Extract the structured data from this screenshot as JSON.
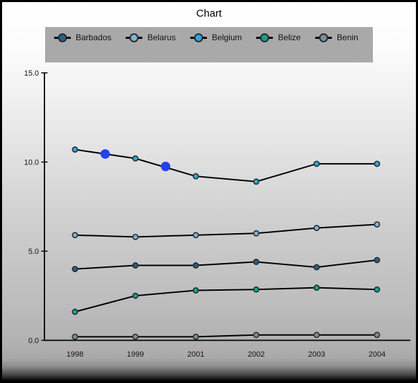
{
  "title": "Chart",
  "colors": {
    "background_top": "#ffffff",
    "background_bottom": "#000000",
    "legend_background": "#a9a9a9",
    "series_line": "#000000",
    "marker_stroke": "#2b2b2b",
    "axis": "#000000",
    "text": "#111111",
    "highlight": "#2441ef"
  },
  "chart_data": {
    "type": "line",
    "title": "Chart",
    "categories": [
      "1998",
      "1999",
      "2001",
      "2002",
      "2003",
      "2004"
    ],
    "series": [
      {
        "name": "Barbados",
        "color": "#21618c",
        "values": [
          4.0,
          4.2,
          4.2,
          4.4,
          4.1,
          4.5
        ]
      },
      {
        "name": "Belarus",
        "color": "#7fb3d5",
        "values": [
          5.9,
          5.8,
          5.9,
          6.0,
          6.3,
          6.5
        ]
      },
      {
        "name": "Belgium",
        "color": "#29abe2",
        "values": [
          10.7,
          10.2,
          9.2,
          8.9,
          9.9,
          9.9
        ]
      },
      {
        "name": "Belize",
        "color": "#0fa390",
        "values": [
          1.6,
          2.5,
          2.8,
          2.85,
          2.95,
          2.85
        ]
      },
      {
        "name": "Benin",
        "color": "#78909c",
        "values": [
          0.2,
          0.2,
          0.2,
          0.3,
          0.3,
          0.3
        ]
      }
    ],
    "highlighted_points": [
      {
        "series": "Belgium",
        "between_categories": [
          "1998",
          "1999"
        ],
        "value": 10.45,
        "color": "#2441ef"
      },
      {
        "series": "Belgium",
        "between_categories": [
          "1999",
          "2001"
        ],
        "value": 9.75,
        "color": "#2441ef"
      }
    ],
    "y_axis": {
      "min": 0,
      "max": 15,
      "tick_labels": [
        "15.0",
        "10.0",
        "5.0",
        "0.0"
      ],
      "tick_values": [
        15,
        10,
        5,
        0
      ]
    },
    "x_axis": {
      "tick_labels": [
        "1998",
        "1999",
        "2001",
        "2002",
        "2003",
        "2004"
      ]
    },
    "legend_position": "top",
    "grid": false
  }
}
